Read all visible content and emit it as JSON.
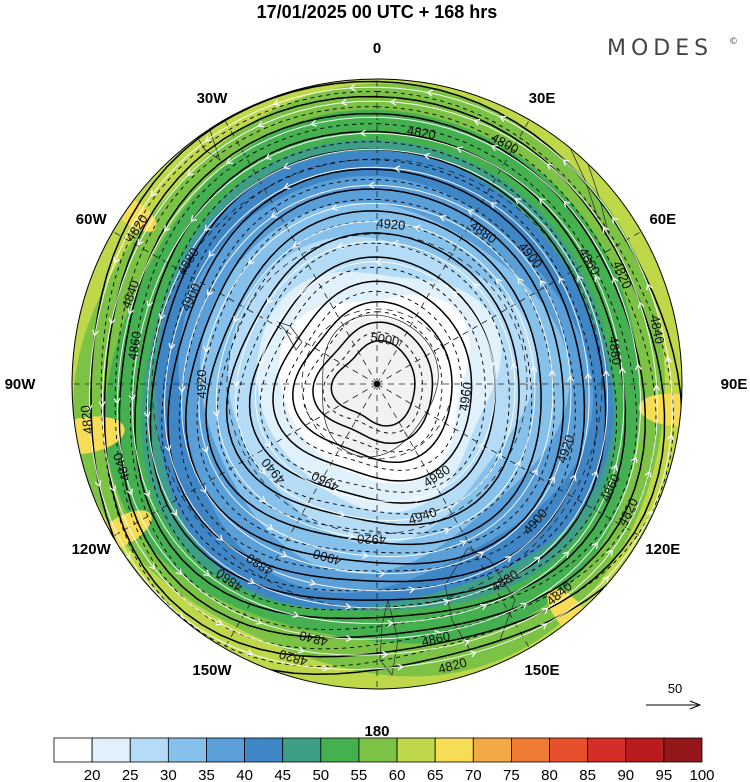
{
  "title": "17/01/2025  00 UTC  + 168 hrs",
  "brand": {
    "name": "MODES",
    "mark": "©"
  },
  "map": {
    "projection": "polar-stereographic-south",
    "longitude_labels": [
      {
        "lon": 0,
        "text": "0"
      },
      {
        "lon": 30,
        "text": "30E"
      },
      {
        "lon": 60,
        "text": "60E"
      },
      {
        "lon": 90,
        "text": "90E"
      },
      {
        "lon": 120,
        "text": "120E"
      },
      {
        "lon": 150,
        "text": "150E"
      },
      {
        "lon": 180,
        "text": "180"
      },
      {
        "lon": -150,
        "text": "150W"
      },
      {
        "lon": -120,
        "text": "120W"
      },
      {
        "lon": -90,
        "text": "90W"
      },
      {
        "lon": -60,
        "text": "60W"
      },
      {
        "lon": -30,
        "text": "30W"
      }
    ],
    "contour_labels": [
      {
        "text": "4820",
        "lon": 10
      },
      {
        "text": "4800",
        "lon": 28
      },
      {
        "text": "4880",
        "lon": 35
      },
      {
        "text": "4920",
        "lon": 5
      },
      {
        "text": "4900",
        "lon": 50
      },
      {
        "text": "4860",
        "lon": 60
      },
      {
        "text": "4820",
        "lon": 66
      },
      {
        "text": "4840",
        "lon": 79
      },
      {
        "text": "4880",
        "lon": 82
      },
      {
        "text": "4960",
        "lon": 98
      },
      {
        "text": "4920",
        "lon": 109
      },
      {
        "text": "4860",
        "lon": 114
      },
      {
        "text": "4820",
        "lon": 117
      },
      {
        "text": "4900",
        "lon": 131
      },
      {
        "text": "4840",
        "lon": 139
      },
      {
        "text": "4980",
        "lon": 147
      },
      {
        "text": "4880",
        "lon": 147
      },
      {
        "text": "4860",
        "lon": 167
      },
      {
        "text": "4820",
        "lon": 165
      },
      {
        "text": "4940",
        "lon": 161
      },
      {
        "text": "4920",
        "lon": -178
      },
      {
        "text": "4900",
        "lon": -164
      },
      {
        "text": "4960",
        "lon": -152
      },
      {
        "text": "4880",
        "lon": -147
      },
      {
        "text": "4840",
        "lon": -166
      },
      {
        "text": "4820",
        "lon": -163
      },
      {
        "text": "4860",
        "lon": -143
      },
      {
        "text": "4940",
        "lon": -130
      },
      {
        "text": "4840",
        "lon": -108
      },
      {
        "text": "4820",
        "lon": -97
      },
      {
        "text": "4920",
        "lon": -90
      },
      {
        "text": "4860",
        "lon": -81
      },
      {
        "text": "4900",
        "lon": -65
      },
      {
        "text": "4840",
        "lon": -70
      },
      {
        "text": "4880",
        "lon": -57
      },
      {
        "text": "4820",
        "lon": -57
      },
      {
        "text": "5000",
        "lon": 10
      }
    ],
    "wind_reference": {
      "value": "50"
    }
  },
  "colorbar": {
    "labels": [
      "20",
      "25",
      "30",
      "35",
      "40",
      "45",
      "50",
      "55",
      "60",
      "65",
      "70",
      "75",
      "80",
      "85",
      "90",
      "95",
      "100"
    ],
    "colors": [
      "#ffffff",
      "#e1f1fc",
      "#b4dcf7",
      "#86c1ec",
      "#5b9fd9",
      "#3e86c6",
      "#3f9f86",
      "#45b04f",
      "#7cc345",
      "#bed84a",
      "#f7dc56",
      "#f3aa46",
      "#ee7a36",
      "#e6502d",
      "#d52d27",
      "#b91b1f",
      "#94171a"
    ]
  }
}
